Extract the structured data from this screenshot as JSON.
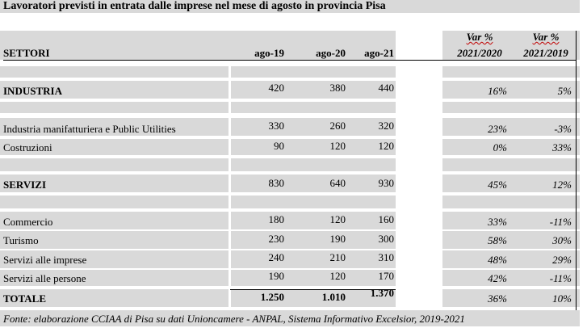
{
  "title": "Lavoratori previsti in entrata dalle imprese nel mese di agosto in provincia Pisa",
  "headers": {
    "sector": "SETTORI",
    "years": [
      "ago-19",
      "ago-20",
      "ago-21"
    ],
    "var_label": "Var %",
    "var_periods": [
      "2021/2020",
      "2021/2019"
    ]
  },
  "rows": {
    "industria": {
      "label": "INDUSTRIA",
      "values": [
        "420",
        "380",
        "440"
      ],
      "var": [
        "16%",
        "5%"
      ]
    },
    "manifatturiera": {
      "label": "Industria manifatturiera e Public Utilities",
      "values": [
        "330",
        "260",
        "320"
      ],
      "var": [
        "23%",
        "-3%"
      ]
    },
    "costruzioni": {
      "label": "Costruzioni",
      "values": [
        "90",
        "120",
        "120"
      ],
      "var": [
        "0%",
        "33%"
      ]
    },
    "servizi": {
      "label": "SERVIZI",
      "values": [
        "830",
        "640",
        "930"
      ],
      "var": [
        "45%",
        "12%"
      ]
    },
    "commercio": {
      "label": "Commercio",
      "values": [
        "180",
        "120",
        "160"
      ],
      "var": [
        "33%",
        "-11%"
      ]
    },
    "turismo": {
      "label": "Turismo",
      "values": [
        "230",
        "190",
        "300"
      ],
      "var": [
        "58%",
        "30%"
      ]
    },
    "imprese": {
      "label": "Servizi alle imprese",
      "values": [
        "240",
        "210",
        "310"
      ],
      "var": [
        "48%",
        "29%"
      ]
    },
    "persone": {
      "label": "Servizi alle persone",
      "values": [
        "190",
        "120",
        "170"
      ],
      "var": [
        "42%",
        "-11%"
      ]
    },
    "totale": {
      "label": "TOTALE",
      "values": [
        "1.250",
        "1.010",
        "1.370"
      ],
      "var": [
        "36%",
        "10%"
      ]
    }
  },
  "source": "Fonte: elaborazione CCIAA di Pisa su dati Unioncamere - ANPAL, Sistema Informativo Excelsior, 2019-2021"
}
